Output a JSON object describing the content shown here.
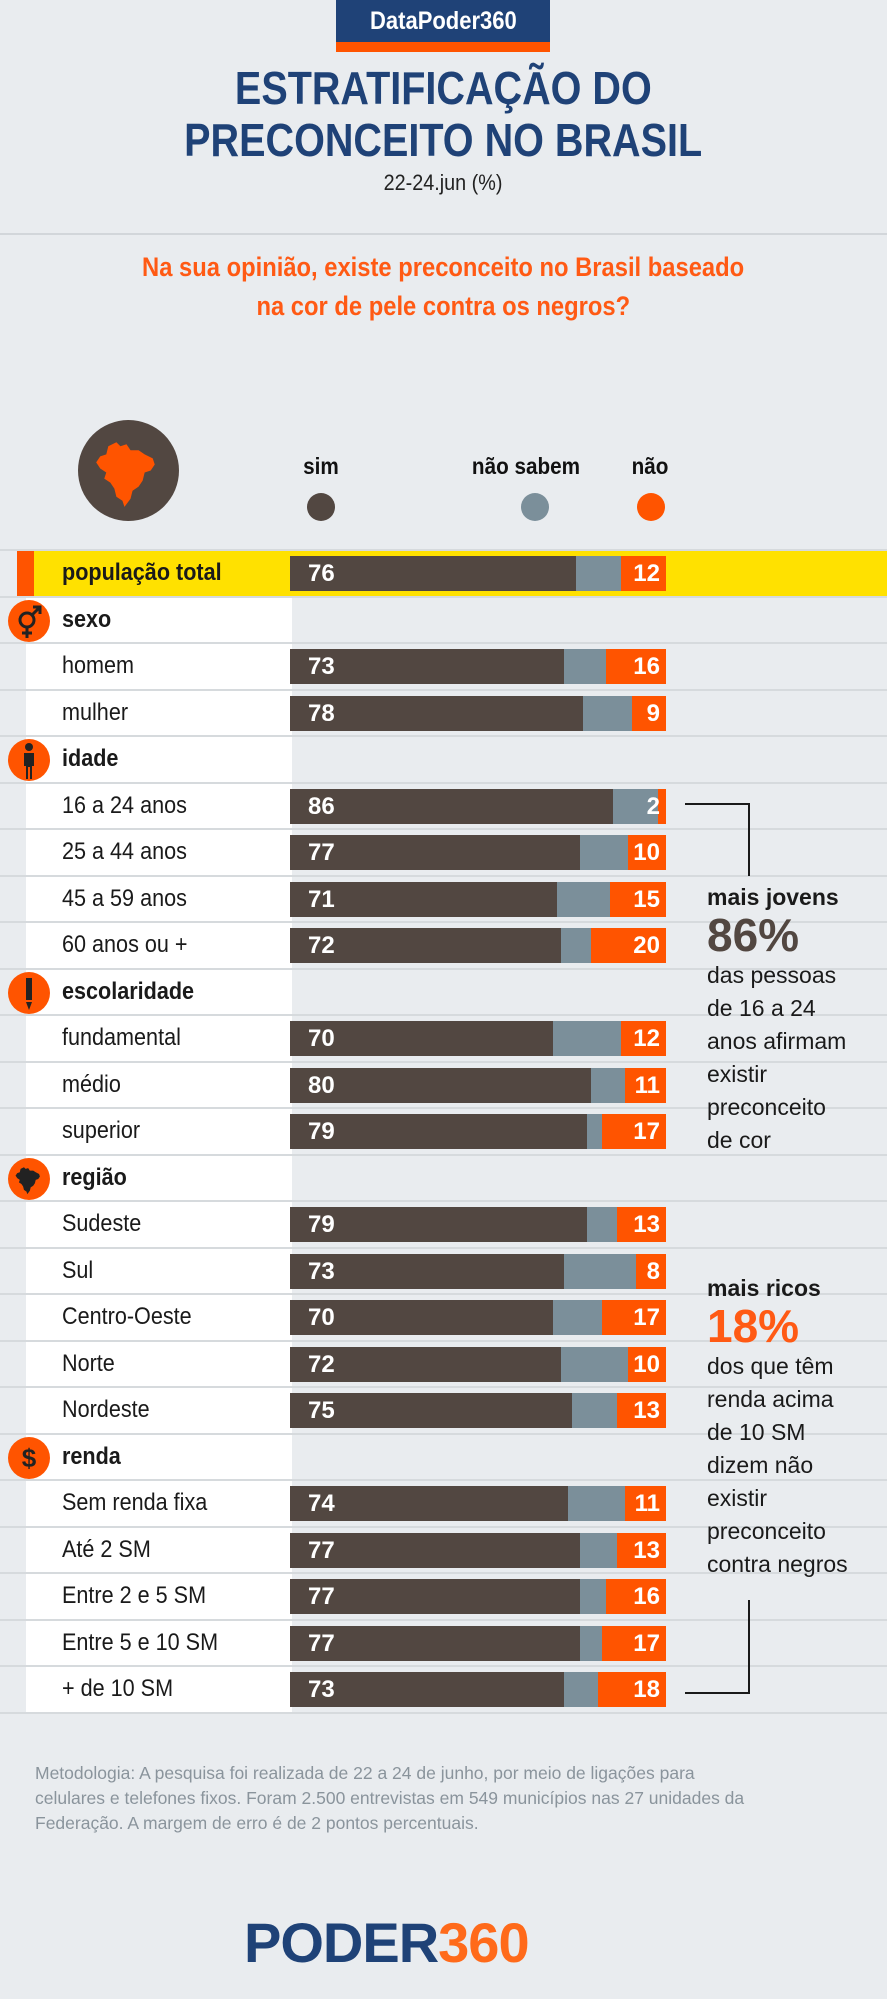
{
  "header": {
    "badge": "DataPoder360",
    "title_line1": "ESTRATIFICAÇÃO DO",
    "title_line2": "PRECONCEITO NO BRASIL",
    "subtitle": "22-24.jun (%)"
  },
  "question": {
    "line1": "Na sua opinião, existe preconceito no Brasil baseado",
    "line2": "na cor de pele contra os negros?"
  },
  "legend": {
    "sim": "sim",
    "nao_sabem": "não sabem",
    "nao": "não",
    "icon": "brazil-map-icon"
  },
  "colors": {
    "sim": "#524741",
    "nao_sabem": "#7b8f9a",
    "nao": "#ff5400",
    "highlight": "#ffe100",
    "brand_blue": "#1f4277"
  },
  "chart_data": {
    "type": "bar",
    "stacked": true,
    "orientation": "horizontal",
    "title": "ESTRATIFICAÇÃO DO PRECONCEITO NO BRASIL",
    "subtitle": "22-24.jun (%)",
    "xlim": [
      0,
      100
    ],
    "series_names": [
      "sim",
      "não sabem",
      "não"
    ],
    "rows": [
      {
        "type": "total",
        "label": "população total",
        "sim": 76,
        "nao": 12
      },
      {
        "type": "group",
        "label": "sexo",
        "icon": "gender-icon"
      },
      {
        "type": "item",
        "label": "homem",
        "sim": 73,
        "nao": 16
      },
      {
        "type": "item",
        "label": "mulher",
        "sim": 78,
        "nao": 9
      },
      {
        "type": "group",
        "label": "idade",
        "icon": "person-icon"
      },
      {
        "type": "item",
        "label": "16 a 24 anos",
        "sim": 86,
        "nao": 2
      },
      {
        "type": "item",
        "label": "25 a 44 anos",
        "sim": 77,
        "nao": 10
      },
      {
        "type": "item",
        "label": "45 a 59 anos",
        "sim": 71,
        "nao": 15
      },
      {
        "type": "item",
        "label": "60 anos ou +",
        "sim": 72,
        "nao": 20
      },
      {
        "type": "group",
        "label": "escolaridade",
        "icon": "pencil-icon"
      },
      {
        "type": "item",
        "label": "fundamental",
        "sim": 70,
        "nao": 12
      },
      {
        "type": "item",
        "label": "médio",
        "sim": 80,
        "nao": 11
      },
      {
        "type": "item",
        "label": "superior",
        "sim": 79,
        "nao": 17
      },
      {
        "type": "group",
        "label": "região",
        "icon": "brazil-map-icon"
      },
      {
        "type": "item",
        "label": "Sudeste",
        "sim": 79,
        "nao": 13
      },
      {
        "type": "item",
        "label": "Sul",
        "sim": 73,
        "nao": 8
      },
      {
        "type": "item",
        "label": "Centro-Oeste",
        "sim": 70,
        "nao": 17
      },
      {
        "type": "item",
        "label": "Norte",
        "sim": 72,
        "nao": 10
      },
      {
        "type": "item",
        "label": "Nordeste",
        "sim": 75,
        "nao": 13
      },
      {
        "type": "group",
        "label": "renda",
        "icon": "dollar-icon"
      },
      {
        "type": "item",
        "label": "Sem renda fixa",
        "sim": 74,
        "nao": 11
      },
      {
        "type": "item",
        "label": "Até 2 SM",
        "sim": 77,
        "nao": 13
      },
      {
        "type": "item",
        "label": "Entre 2 e 5 SM",
        "sim": 77,
        "nao": 16
      },
      {
        "type": "item",
        "label": "Entre 5 e 10 SM",
        "sim": 77,
        "nao": 17
      },
      {
        "type": "item",
        "label": "+ de 10 SM",
        "sim": 73,
        "nao": 18
      }
    ]
  },
  "annotations": {
    "young": {
      "head": "mais jovens",
      "big": "86%",
      "lines": [
        "das pessoas",
        "de 16 a 24",
        "anos afirmam",
        "existir",
        "preconceito",
        "de cor"
      ]
    },
    "rich": {
      "head": "mais ricos",
      "big": "18%",
      "lines": [
        "dos que têm",
        "renda acima",
        "de 10 SM",
        "dizem não",
        "existir",
        "preconceito",
        "contra negros"
      ]
    }
  },
  "footer": {
    "methodology": [
      "Metodologia: A pesquisa foi realizada de 22 a 24 de junho, por meio de ligações  para",
      "celulares e telefones fixos. Foram 2.500 entrevistas em 549 municípios nas 27 unidades da",
      "Federação. A margem de erro é de 2 pontos percentuais."
    ],
    "logo_part1": "PODER",
    "logo_part2": "360"
  }
}
